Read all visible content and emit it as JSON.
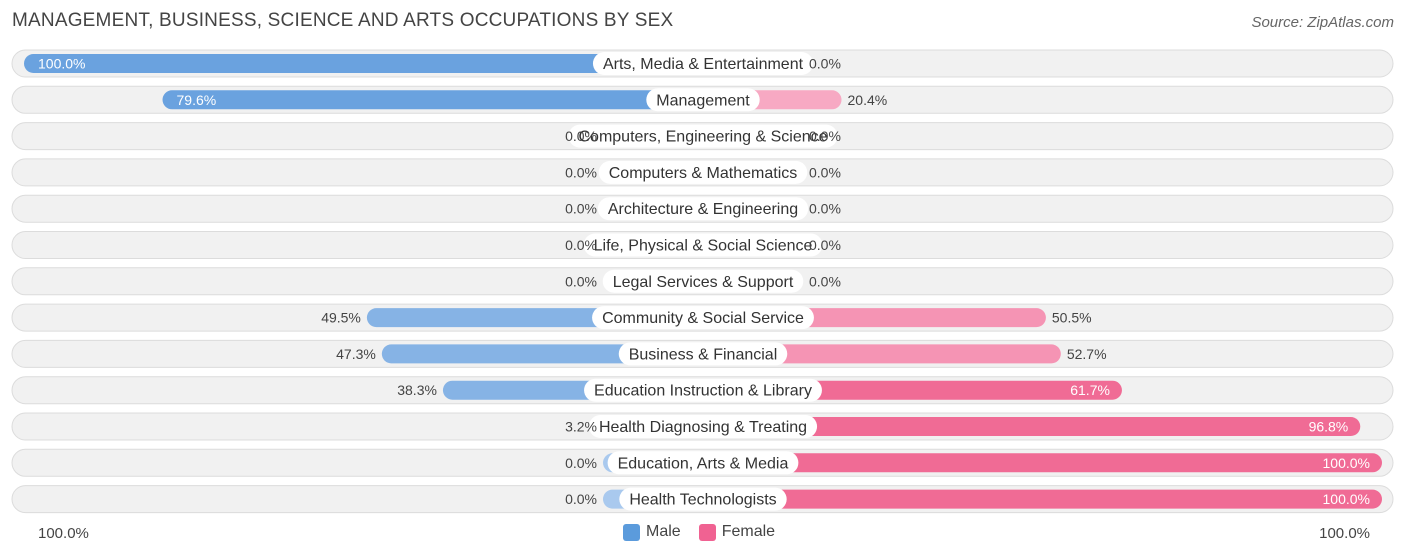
{
  "title": "MANAGEMENT, BUSINESS, SCIENCE AND ARTS OCCUPATIONS BY SEX",
  "source": "Source: ZipAtlas.com",
  "axis": {
    "left_label": "100.0%",
    "right_label": "100.0%"
  },
  "legend": [
    {
      "name": "Male",
      "color": "#5b9bdc"
    },
    {
      "name": "Female",
      "color": "#f06292"
    }
  ],
  "chart_data": {
    "type": "bar",
    "orientation": "horizontal-diverging",
    "title": "MANAGEMENT, BUSINESS, SCIENCE AND ARTS OCCUPATIONS BY SEX",
    "xlim": [
      -100,
      100
    ],
    "categories": [
      "Arts, Media & Entertainment",
      "Management",
      "Computers, Engineering & Science",
      "Computers & Mathematics",
      "Architecture & Engineering",
      "Life, Physical & Social Science",
      "Legal Services & Support",
      "Community & Social Service",
      "Business & Financial",
      "Education Instruction & Library",
      "Health Diagnosing & Treating",
      "Education, Arts & Media",
      "Health Technologists"
    ],
    "series": [
      {
        "name": "Male",
        "values": [
          100.0,
          79.6,
          0.0,
          0.0,
          0.0,
          0.0,
          0.0,
          49.5,
          47.3,
          38.3,
          3.2,
          0.0,
          0.0
        ],
        "labels": [
          "100.0%",
          "79.6%",
          "0.0%",
          "0.0%",
          "0.0%",
          "0.0%",
          "0.0%",
          "49.5%",
          "47.3%",
          "38.3%",
          "3.2%",
          "0.0%",
          "0.0%"
        ]
      },
      {
        "name": "Female",
        "values": [
          0.0,
          20.4,
          0.0,
          0.0,
          0.0,
          0.0,
          0.0,
          50.5,
          52.7,
          61.7,
          96.8,
          100.0,
          100.0
        ],
        "labels": [
          "0.0%",
          "20.4%",
          "0.0%",
          "0.0%",
          "0.0%",
          "0.0%",
          "0.0%",
          "50.5%",
          "52.7%",
          "61.7%",
          "96.8%",
          "100.0%",
          "100.0%"
        ]
      }
    ],
    "legend_position": "bottom-center"
  }
}
